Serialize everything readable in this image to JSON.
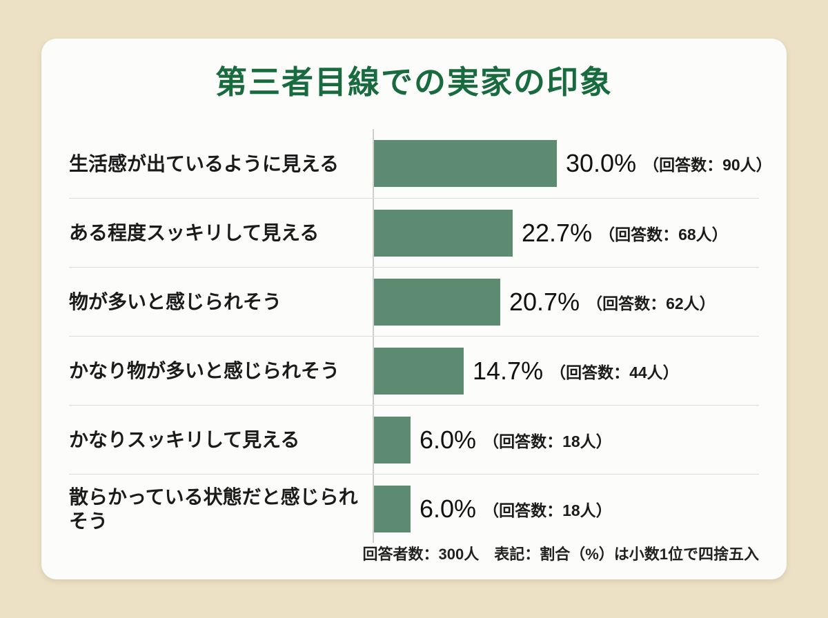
{
  "page": {
    "background_color": "#ece1c5",
    "card_color": "#fcfcfa"
  },
  "chart_data": {
    "type": "bar",
    "orientation": "horizontal",
    "title": "第三者目線での実家の印象",
    "title_color": "#186a3f",
    "bar_color": "#5c8b71",
    "categories": [
      "生活感が出ているように見える",
      "ある程度スッキリして見える",
      "物が多いと感じられそう",
      "かなり物が多いと感じられそう",
      "かなりスッキリして見える",
      "散らかっている状態だと感じられそう"
    ],
    "values": [
      30.0,
      22.7,
      20.7,
      14.7,
      6.0,
      6.0
    ],
    "value_labels": [
      "30.0%",
      "22.7%",
      "20.7%",
      "14.7%",
      "6.0%",
      "6.0%"
    ],
    "counts": [
      90,
      68,
      62,
      44,
      18,
      18
    ],
    "count_labels": [
      "（回答数：90人）",
      "（回答数：68人）",
      "（回答数：62人）",
      "（回答数：44人）",
      "（回答数：18人）",
      "（回答数：18人）"
    ],
    "total_respondents": 300,
    "footnote": "回答者数：300人　表記：割合（%）は小数1位で四捨五入",
    "xlim": [
      0,
      33
    ],
    "legend_position": "none",
    "grid": "row-dividers"
  }
}
